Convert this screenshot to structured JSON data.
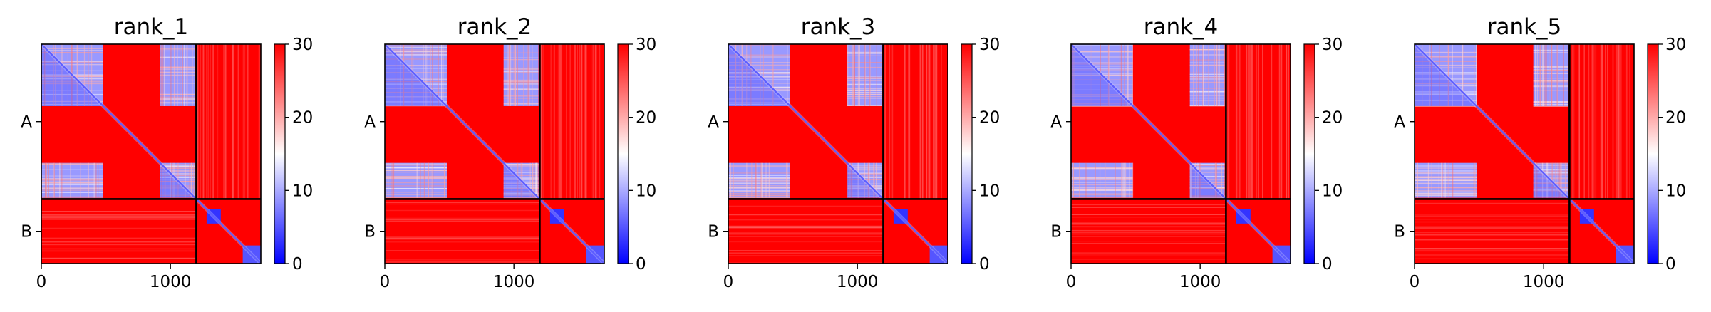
{
  "chart_data": {
    "type": "heatmap",
    "colormap": {
      "name": "bwr",
      "low": "#0000ff",
      "mid": "#ffffff",
      "high": "#ff0000"
    },
    "vmin": 0,
    "vmax": 30,
    "colorbar_ticks": [
      "0",
      "10",
      "20",
      "30"
    ],
    "sequence_length": 1700,
    "chain_boundary": 1200,
    "x_ticks": [
      {
        "value": 0,
        "label": "0"
      },
      {
        "value": 1000,
        "label": "1000"
      }
    ],
    "y_ticks": [
      {
        "value": 600,
        "label": "A"
      },
      {
        "value": 1450,
        "label": "B"
      }
    ],
    "panels": [
      {
        "title": "rank_1"
      },
      {
        "title": "rank_2"
      },
      {
        "title": "rank_3"
      },
      {
        "title": "rank_4"
      },
      {
        "title": "rank_5"
      }
    ]
  }
}
